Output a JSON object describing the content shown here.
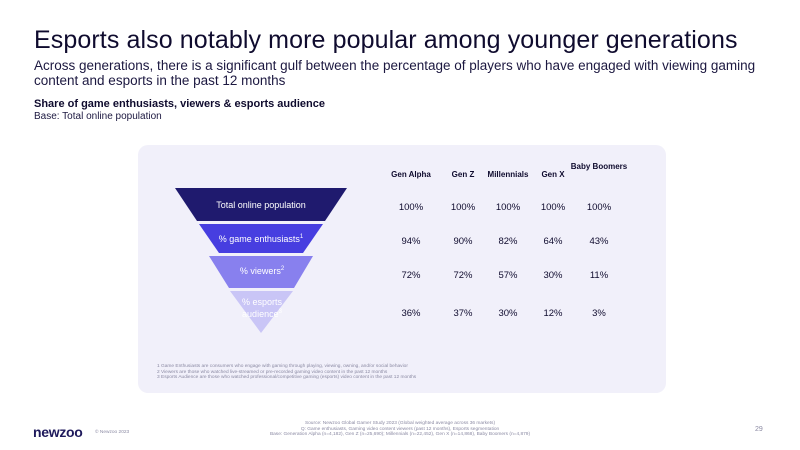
{
  "slide": {
    "title": "Esports also notably more popular among younger generations",
    "subtitle": "Across generations, there is a significant gulf between the percentage of players who have engaged with viewing gaming content and esports in the past 12 months",
    "chart_title": "Share of game enthusiasts, viewers & esports audience",
    "chart_base": "Base: Total online population"
  },
  "colors": {
    "layer_1": "#1f1a6e",
    "layer_2": "#473ee0",
    "layer_3": "#8880ee",
    "layer_4": "#c9c5f6",
    "panel": "#f1f0fa"
  },
  "table": {
    "columns": [
      "Gen Alpha",
      "Gen Z",
      "Millennials",
      "Gen X",
      "Baby Boomers"
    ],
    "rows": [
      {
        "label": "Total online population",
        "label_sup": "",
        "values": [
          "100%",
          "100%",
          "100%",
          "100%",
          "100%"
        ]
      },
      {
        "label": "% game enthusiasts",
        "label_sup": "1",
        "values": [
          "94%",
          "90%",
          "82%",
          "64%",
          "43%"
        ]
      },
      {
        "label": "% viewers",
        "label_sup": "2",
        "values": [
          "72%",
          "72%",
          "57%",
          "30%",
          "11%"
        ]
      },
      {
        "label": "% esports audience",
        "label_sup": "3",
        "values": [
          "36%",
          "37%",
          "30%",
          "12%",
          "3%"
        ]
      }
    ]
  },
  "footnotes": [
    "1 Game Enthusiasts are consumers who engage with gaming through playing, viewing, owning, and/or social behavior",
    "2 Viewers are those who watched live-streamed or pre-recorded gaming video content in the past 12 months",
    "3 Esports Audience are those who watched professional/competitive gaming (esports) video content in the past 12 months"
  ],
  "footer": {
    "logo": "newzoo",
    "copyright": "© Newzoo 2023",
    "source_lines": [
      "Source: Newzoo Global Gamer Study 2023 (Global weighted average across 36 markets)",
      "Q: Game enthusiasts, Gaming video content viewers (past 12 months), Esports segmentation",
      "Base: Generation Alpha (n=4,182), Gen Z (n=25,690); Millennials (n=22,452), Gen X (n=14,868), Baby Boomers (n=4,879)"
    ],
    "page_number": "29"
  }
}
